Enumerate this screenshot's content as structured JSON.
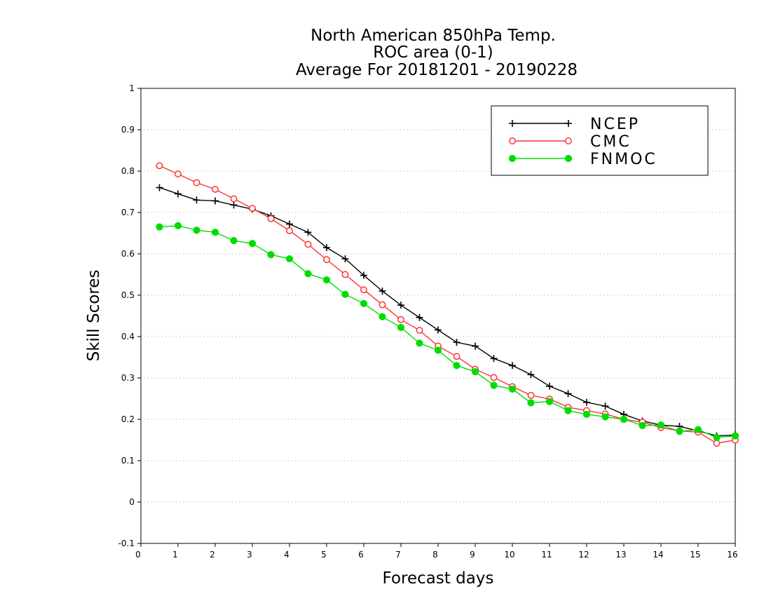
{
  "chart_data": {
    "type": "line",
    "title_lines": [
      "North American 850hPa Temp.",
      "ROC area (0-1)",
      "Average For 20181201 - 20190228"
    ],
    "xlabel": "Forecast days",
    "ylabel": "Skill Scores",
    "xlim": [
      0,
      16
    ],
    "ylim": [
      -0.1,
      1
    ],
    "xticks": [
      "0",
      "1",
      "2",
      "3",
      "4",
      "5",
      "6",
      "7",
      "8",
      "9",
      "10",
      "11",
      "12",
      "13",
      "14",
      "15",
      "16"
    ],
    "yticks": [
      "-0.1",
      "0",
      "0.1",
      "0.2",
      "0.3",
      "0.4",
      "0.5",
      "0.6",
      "0.7",
      "0.8",
      "0.9",
      "1"
    ],
    "grid": "horizontal dotted",
    "legend_position": "top-right",
    "x": [
      0.5,
      1,
      1.5,
      2,
      2.5,
      3,
      3.5,
      4,
      4.5,
      5,
      5.5,
      6,
      6.5,
      7,
      7.5,
      8,
      8.5,
      9,
      9.5,
      10,
      10.5,
      11,
      11.5,
      12,
      12.5,
      13,
      13.5,
      14,
      14.5,
      15,
      15.5,
      16
    ],
    "series": [
      {
        "name": "NCEP",
        "color": "#000000",
        "marker": "plus",
        "values": [
          0.76,
          0.745,
          0.73,
          0.728,
          0.718,
          0.708,
          0.692,
          0.672,
          0.652,
          0.615,
          0.588,
          0.548,
          0.51,
          0.476,
          0.446,
          0.416,
          0.386,
          0.377,
          0.347,
          0.33,
          0.308,
          0.28,
          0.262,
          0.241,
          0.232,
          0.212,
          0.196,
          0.186,
          0.183,
          0.172,
          0.16,
          0.162
        ]
      },
      {
        "name": "CMC",
        "color": "#ff3333",
        "marker": "open-circle",
        "values": [
          0.813,
          0.793,
          0.772,
          0.756,
          0.733,
          0.71,
          0.685,
          0.656,
          0.623,
          0.586,
          0.55,
          0.513,
          0.477,
          0.441,
          0.415,
          0.377,
          0.352,
          0.321,
          0.301,
          0.279,
          0.258,
          0.249,
          0.229,
          0.221,
          0.213,
          0.2,
          0.193,
          0.18,
          0.172,
          0.169,
          0.142,
          0.15
        ]
      },
      {
        "name": "FNMOC",
        "color": "#00dd00",
        "marker": "filled-circle",
        "values": [
          0.665,
          0.668,
          0.657,
          0.652,
          0.632,
          0.625,
          0.598,
          0.588,
          0.552,
          0.537,
          0.502,
          0.48,
          0.448,
          0.422,
          0.384,
          0.367,
          0.33,
          0.315,
          0.282,
          0.273,
          0.24,
          0.243,
          0.221,
          0.212,
          0.206,
          0.2,
          0.185,
          0.186,
          0.171,
          0.175,
          0.156,
          0.16
        ]
      }
    ]
  }
}
